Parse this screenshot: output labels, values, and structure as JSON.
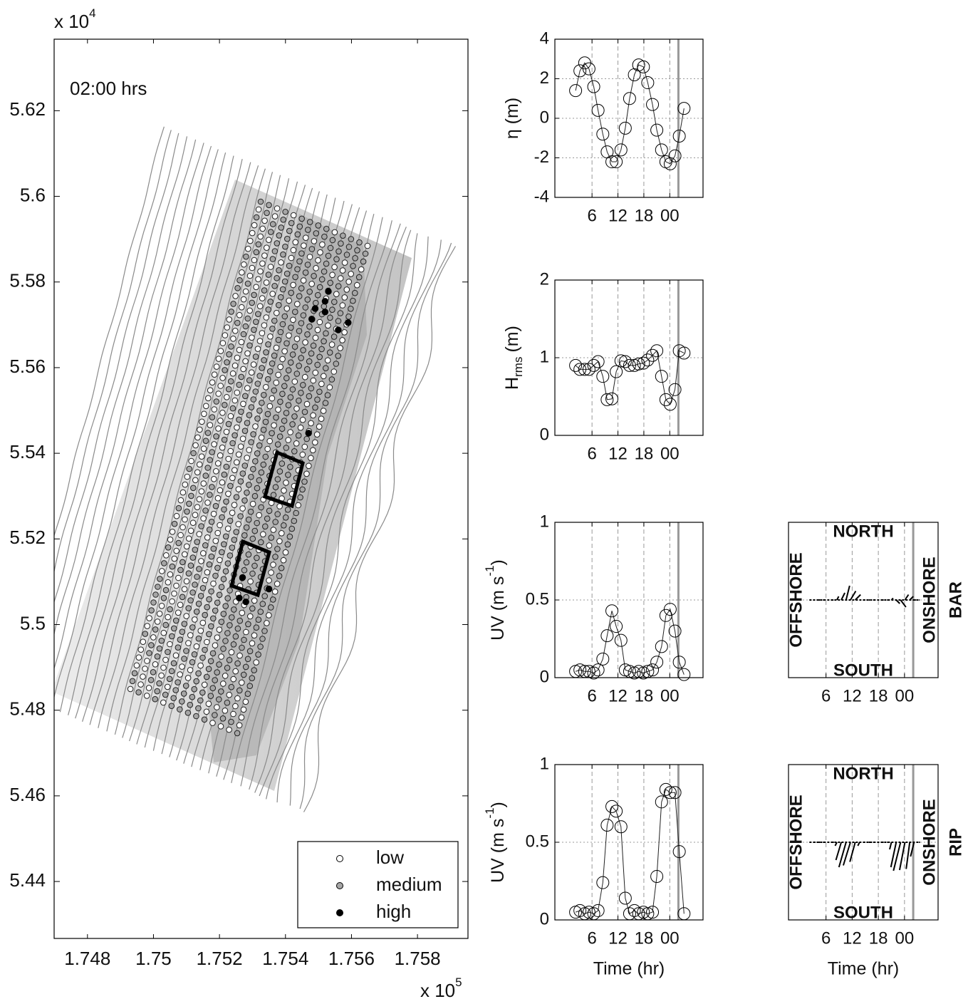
{
  "chart_data": [
    {
      "type": "scatter",
      "annotation": "02:00 hrs",
      "xlim": [
        1.74699,
        1.75953
      ],
      "ylim": [
        5.4267,
        5.6367
      ],
      "xticks": [
        1.748,
        1.75,
        1.752,
        1.754,
        1.756,
        1.758
      ],
      "yticks": [
        5.44,
        5.46,
        5.48,
        5.5,
        5.52,
        5.54,
        5.56,
        5.58,
        5.6,
        5.62
      ],
      "x_scale_label": {
        "text": "x 10",
        "exponent": "5"
      },
      "y_scale_label": {
        "text": "x 10",
        "exponent": "4"
      },
      "series": [
        {
          "name": "low",
          "color": "#ffffff"
        },
        {
          "name": "medium",
          "color": "#a6a6a6"
        },
        {
          "name": "high",
          "color": "#000000",
          "x": [
            1.7553,
            1.7552,
            1.7549,
            1.7552,
            1.7548,
            1.7556,
            1.7559,
            1.7547,
            1.7527,
            1.7526,
            1.7528,
            1.7535
          ],
          "y": [
            5.5778,
            5.5755,
            5.5738,
            5.573,
            5.5713,
            5.5688,
            5.5705,
            5.5447,
            5.511,
            5.5062,
            5.5053,
            5.5083
          ]
        }
      ]
    },
    {
      "type": "line",
      "ylabel": {
        "text": "η (m)"
      },
      "xlim": [
        -2.6,
        31.7
      ],
      "ylim": [
        -4,
        4
      ],
      "xticks": [
        6,
        12,
        18,
        {
          "value": 24,
          "label": "00"
        }
      ],
      "yticks": [
        -4,
        -2,
        0,
        2,
        4
      ],
      "grid": true,
      "time_marker": 26,
      "x": [
        2.2,
        3.2,
        4.3,
        5.3,
        6.4,
        7.4,
        8.5,
        9.5,
        10.6,
        11.6,
        12.7,
        13.7,
        14.7,
        15.8,
        16.8,
        17.9,
        18.9,
        20.0,
        21.0,
        22.1,
        23.1,
        24.1,
        25.2,
        26.2,
        27.3
      ],
      "values": [
        1.4,
        2.4,
        2.8,
        2.5,
        1.6,
        0.4,
        -0.8,
        -1.7,
        -2.2,
        -2.2,
        -1.6,
        -0.5,
        1.0,
        2.2,
        2.7,
        2.6,
        1.8,
        0.7,
        -0.6,
        -1.6,
        -2.2,
        -2.3,
        -1.9,
        -0.9,
        0.5
      ]
    },
    {
      "type": "line",
      "ylabel": {
        "text": "H",
        "sub": "rms",
        "tail": "(m)"
      },
      "xlim": [
        -2.6,
        31.7
      ],
      "ylim": [
        0,
        2
      ],
      "xticks": [
        6,
        12,
        18,
        {
          "value": 24,
          "label": "00"
        }
      ],
      "yticks": [
        0,
        1,
        2
      ],
      "grid": true,
      "time_marker": 26,
      "x": [
        2.2,
        3.2,
        4.3,
        5.3,
        6.4,
        7.4,
        8.5,
        9.5,
        10.6,
        11.6,
        12.7,
        13.7,
        14.7,
        15.8,
        16.8,
        17.9,
        18.9,
        20.0,
        21.0,
        22.1,
        23.1,
        24.1,
        25.2,
        26.2,
        27.3
      ],
      "values": [
        0.9,
        0.85,
        0.85,
        0.85,
        0.9,
        0.95,
        0.76,
        0.46,
        0.47,
        0.82,
        0.96,
        0.95,
        0.9,
        0.9,
        0.92,
        0.93,
        0.97,
        1.03,
        1.09,
        0.76,
        0.46,
        0.4,
        0.59,
        1.09,
        1.06
      ]
    },
    {
      "type": "line",
      "ylabel": {
        "text": "UV (m s",
        "sup": "-1",
        "tail": ")"
      },
      "xlim": [
        -2.6,
        31.7
      ],
      "ylim": [
        0,
        1
      ],
      "xticks": [
        6,
        12,
        18,
        {
          "value": 24,
          "label": "00"
        }
      ],
      "yticks": [
        0,
        0.5,
        1
      ],
      "grid": true,
      "time_marker": 26,
      "x": [
        2.2,
        3.2,
        4.3,
        5.3,
        6.4,
        7.4,
        8.5,
        9.5,
        10.6,
        11.6,
        12.7,
        13.7,
        14.7,
        15.8,
        16.8,
        17.9,
        18.9,
        20.0,
        21.0,
        22.1,
        23.1,
        24.1,
        25.2,
        26.2,
        27.3
      ],
      "values": [
        0.04,
        0.05,
        0.04,
        0.04,
        0.03,
        0.05,
        0.12,
        0.27,
        0.43,
        0.33,
        0.24,
        0.05,
        0.04,
        0.03,
        0.04,
        0.03,
        0.04,
        0.05,
        0.1,
        0.2,
        0.4,
        0.44,
        0.3,
        0.1,
        0.02
      ]
    },
    {
      "type": "line",
      "ylabel": {
        "text": "UV (m s",
        "sup": "-1",
        "tail": ")"
      },
      "xlabel": "Time (hr)",
      "xlim": [
        -2.6,
        31.7
      ],
      "ylim": [
        0,
        1
      ],
      "xticks": [
        6,
        12,
        18,
        {
          "value": 24,
          "label": "00"
        }
      ],
      "yticks": [
        0,
        0.5,
        1
      ],
      "grid": true,
      "time_marker": 26,
      "x": [
        2.2,
        3.2,
        4.3,
        5.3,
        6.4,
        7.4,
        8.5,
        9.5,
        10.6,
        11.6,
        12.7,
        13.7,
        14.7,
        15.8,
        16.8,
        17.9,
        18.9,
        20.0,
        21.0,
        22.1,
        23.1,
        24.1,
        25.2,
        26.2,
        27.3
      ],
      "values": [
        0.05,
        0.06,
        0.04,
        0.05,
        0.04,
        0.06,
        0.24,
        0.61,
        0.73,
        0.7,
        0.6,
        0.14,
        0.04,
        0.06,
        0.04,
        0.05,
        0.04,
        0.05,
        0.28,
        0.76,
        0.84,
        0.82,
        0.82,
        0.44,
        0.04
      ]
    },
    {
      "type": "quiver",
      "north": "NORTH",
      "south": "SOUTH",
      "offshore": "OFFSHORE",
      "onshore": "ONSHORE",
      "site": "BAR",
      "xlim": [
        -2.6,
        31.7
      ],
      "xticks": [
        6,
        12,
        18,
        {
          "value": 24,
          "label": "00"
        }
      ],
      "time_marker": 26,
      "x": [
        2.2,
        3.2,
        4.3,
        5.3,
        6.4,
        7.4,
        8.5,
        9.5,
        10.6,
        11.6,
        12.7,
        13.7,
        14.7,
        15.8,
        16.8,
        17.9,
        18.9,
        20.0,
        21.0,
        22.1,
        23.1,
        24.1,
        25.2,
        26.2,
        27.3
      ],
      "u": [
        0.04,
        0.04,
        0.04,
        0.04,
        0.03,
        0.04,
        0.05,
        0.1,
        0.1,
        0.15,
        0.15,
        0.04,
        0.04,
        0.03,
        0.04,
        0.03,
        0.04,
        0.04,
        0.05,
        0.1,
        0.15,
        0.1,
        0.1,
        0.05,
        0.02
      ],
      "v": [
        0,
        0,
        0,
        0,
        0,
        0,
        0.1,
        0.2,
        0.4,
        0.25,
        0.15,
        0,
        0,
        0,
        0,
        0,
        0,
        0,
        0.05,
        -0.1,
        -0.2,
        0.15,
        0.1,
        0,
        0
      ]
    },
    {
      "type": "quiver",
      "north": "NORTH",
      "south": "SOUTH",
      "offshore": "OFFSHORE",
      "onshore": "ONSHORE",
      "site": "RIP",
      "xlabel": "Time (hr)",
      "xlim": [
        -2.6,
        31.7
      ],
      "xticks": [
        6,
        12,
        18,
        {
          "value": 24,
          "label": "00"
        }
      ],
      "time_marker": 26,
      "x": [
        2.2,
        3.2,
        4.3,
        5.3,
        6.4,
        7.4,
        8.5,
        9.5,
        10.6,
        11.6,
        12.7,
        13.7,
        14.7,
        15.8,
        16.8,
        17.9,
        18.9,
        20.0,
        21.0,
        22.1,
        23.1,
        24.1,
        25.2,
        26.2,
        27.3
      ],
      "u": [
        0.04,
        0.05,
        0.04,
        0.04,
        0.04,
        0.05,
        -0.05,
        -0.15,
        -0.2,
        -0.2,
        -0.15,
        -0.05,
        0.04,
        0.05,
        0.04,
        0.04,
        0.04,
        0.04,
        -0.05,
        -0.15,
        -0.2,
        -0.15,
        -0.1,
        -0.1,
        0.03
      ],
      "v": [
        0,
        0,
        0,
        0,
        0,
        0,
        -0.1,
        -0.5,
        -0.7,
        -0.65,
        -0.55,
        -0.1,
        0,
        0,
        0,
        0,
        0,
        0,
        -0.2,
        -0.7,
        -0.8,
        -0.78,
        -0.75,
        -0.4,
        0
      ]
    }
  ]
}
